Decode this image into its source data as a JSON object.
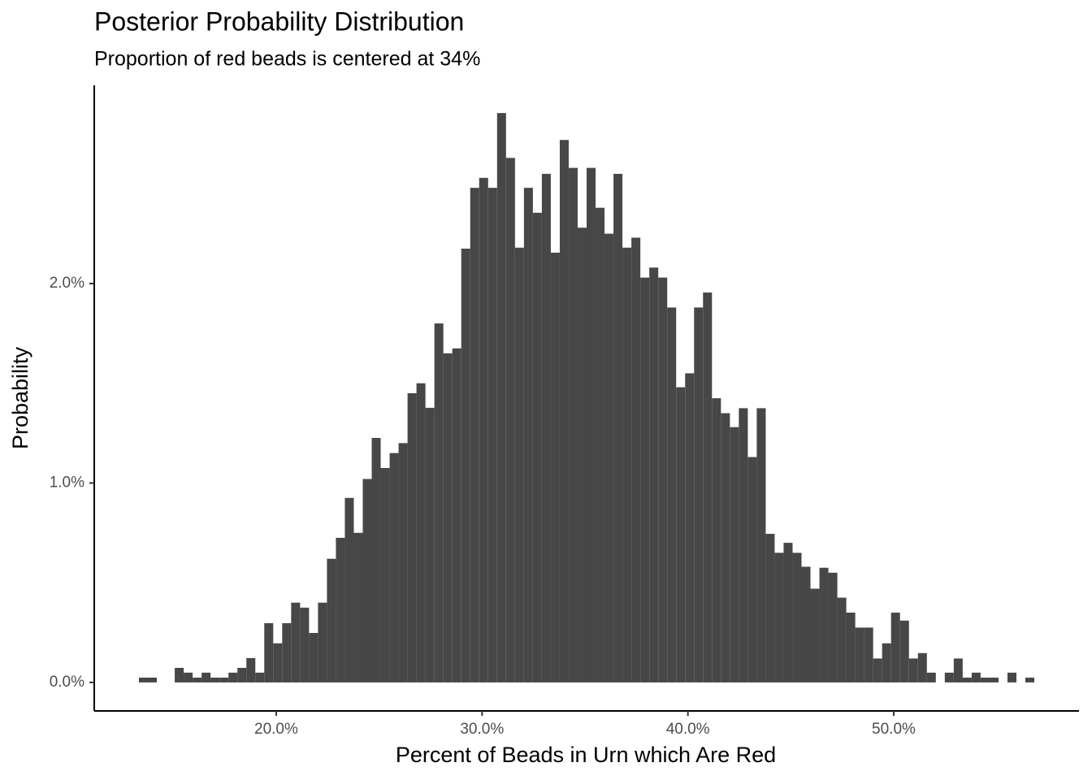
{
  "chart_data": {
    "type": "histogram",
    "title": "Posterior Probability Distribution",
    "subtitle": "Proportion of red beads is centered at 34%",
    "xlabel": "Percent of Beads in Urn which Are Red",
    "ylabel": "Probability",
    "color": "#474747",
    "bins": [
      13.33,
      13.765,
      14.2,
      14.635,
      15.07,
      15.505,
      15.94,
      16.375,
      16.81,
      17.245,
      17.68,
      18.115,
      18.55,
      18.985,
      19.42,
      19.855,
      20.29,
      20.725,
      21.16,
      21.595,
      22.03,
      22.465,
      22.9,
      23.335,
      23.77,
      24.205,
      24.64,
      25.075,
      25.51,
      25.945,
      26.38,
      26.815,
      27.25,
      27.685,
      28.12,
      28.555,
      28.99,
      29.425,
      29.86,
      30.295,
      30.73,
      31.165,
      31.6,
      32.035,
      32.47,
      32.905,
      33.34,
      33.775,
      34.21,
      34.645,
      35.08,
      35.515,
      35.95,
      36.385,
      36.82,
      37.255,
      37.69,
      38.125,
      38.56,
      38.995,
      39.43,
      39.865,
      40.3,
      40.735,
      41.17,
      41.605,
      42.04,
      42.475,
      42.91,
      43.345,
      43.78,
      44.215,
      44.65,
      45.085,
      45.52,
      45.955,
      46.39,
      46.825,
      47.26,
      47.695,
      48.13,
      48.565,
      49.0,
      49.435,
      49.87,
      50.305,
      50.74,
      51.175,
      51.61,
      52.045,
      52.48,
      52.915,
      53.35,
      53.785,
      54.22,
      54.655,
      55.09,
      55.525,
      55.96,
      56.395,
      56.83
    ],
    "values": [
      0.024,
      0.024,
      0,
      0,
      0.073,
      0.049,
      0.024,
      0.049,
      0.024,
      0.024,
      0.049,
      0.073,
      0.122,
      0.049,
      0.297,
      0.196,
      0.297,
      0.4,
      0.375,
      0.248,
      0.4,
      0.62,
      0.725,
      0.925,
      0.75,
      1.02,
      1.226,
      1.075,
      1.15,
      1.2,
      1.45,
      1.5,
      1.377,
      1.8,
      1.65,
      1.675,
      2.175,
      2.48,
      2.53,
      2.48,
      2.855,
      2.63,
      2.18,
      2.48,
      2.355,
      2.55,
      2.155,
      2.72,
      2.58,
      2.28,
      2.58,
      2.38,
      2.25,
      2.55,
      2.18,
      2.23,
      2.03,
      2.08,
      2.03,
      1.88,
      1.48,
      1.55,
      1.88,
      1.955,
      1.425,
      1.35,
      1.28,
      1.375,
      1.13,
      1.375,
      0.745,
      0.65,
      0.7,
      0.65,
      0.58,
      0.47,
      0.575,
      0.55,
      0.425,
      0.35,
      0.275,
      0.275,
      0.12,
      0.196,
      0.35,
      0.31,
      0.12,
      0.147,
      0.049,
      0,
      0.049,
      0.12,
      0.024,
      0.049,
      0.024,
      0.024,
      0,
      0.049,
      0,
      0.024
    ],
    "xlim": [
      11.16,
      59.0
    ],
    "ylim": [
      -0.143,
      2.994
    ],
    "xticks": [
      {
        "value": 20,
        "label": "20.0%"
      },
      {
        "value": 30,
        "label": "30.0%"
      },
      {
        "value": 40,
        "label": "40.0%"
      },
      {
        "value": 50,
        "label": "50.0%"
      }
    ],
    "yticks": [
      {
        "value": 0,
        "label": "0.0%"
      },
      {
        "value": 1,
        "label": "1.0%"
      },
      {
        "value": 2,
        "label": "2.0%"
      }
    ],
    "grid": false
  }
}
